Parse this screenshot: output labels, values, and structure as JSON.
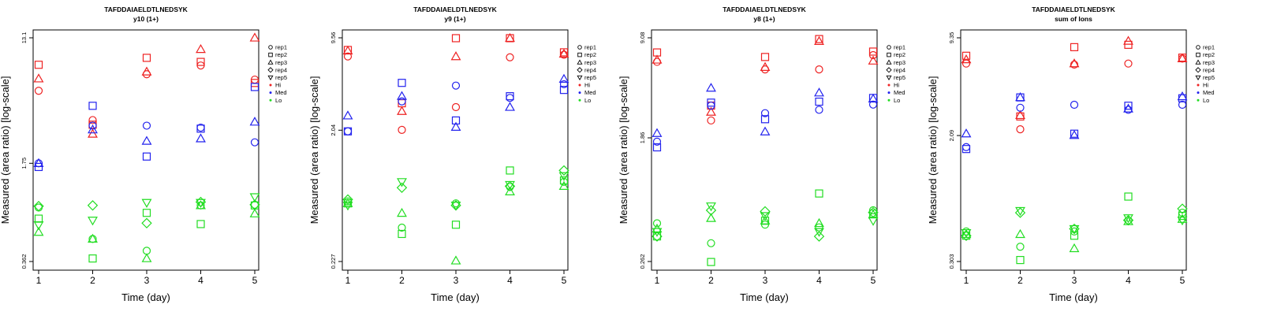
{
  "colors": {
    "Hi": "#ee2222",
    "Med": "#2222ee",
    "Lo": "#22dd22",
    "axis": "#000000"
  },
  "legend_items": [
    {
      "label": "rep1",
      "kind": "rep",
      "index": 0
    },
    {
      "label": "rep2",
      "kind": "rep",
      "index": 1
    },
    {
      "label": "rep3",
      "kind": "rep",
      "index": 2
    },
    {
      "label": "rep4",
      "kind": "rep",
      "index": 3
    },
    {
      "label": "rep5",
      "kind": "rep",
      "index": 4
    },
    {
      "label": "Hi",
      "kind": "group",
      "group": "Hi"
    },
    {
      "label": "Med",
      "kind": "group",
      "group": "Med"
    },
    {
      "label": "Lo",
      "kind": "group",
      "group": "Lo"
    }
  ],
  "chart_data": [
    {
      "type": "scatter",
      "title": "TAFDDAIAELDTLNEDSYK",
      "subtitle": "y10 (1+)",
      "xlabel": "Time (day)",
      "ylabel": "Measured (area ratio) [log-scale]",
      "y_scale": "log",
      "ylim": [
        0.362,
        13.1
      ],
      "yticks": [
        "0.362",
        "1.75",
        "13.1"
      ],
      "xticks": [
        "1",
        "2",
        "3",
        "4",
        "5"
      ],
      "series": [
        {
          "group": "Hi",
          "rep": "rep1",
          "x": [
            1,
            2,
            3,
            4,
            5
          ],
          "y": [
            5.6,
            3.5,
            7.3,
            8.4,
            6.7
          ]
        },
        {
          "group": "Hi",
          "rep": "rep2",
          "x": [
            1,
            2,
            3,
            4,
            5
          ],
          "y": [
            8.5,
            3.25,
            9.5,
            8.9,
            6.35
          ]
        },
        {
          "group": "Hi",
          "rep": "rep3",
          "x": [
            1,
            2,
            3,
            4,
            5
          ],
          "y": [
            6.8,
            2.8,
            7.6,
            10.9,
            13.1
          ]
        },
        {
          "group": "Med",
          "rep": "rep1",
          "x": [
            1,
            2,
            3,
            4,
            5
          ],
          "y": [
            1.75,
            3.2,
            3.2,
            3.1,
            2.45
          ]
        },
        {
          "group": "Med",
          "rep": "rep2",
          "x": [
            1,
            2,
            3,
            4,
            5
          ],
          "y": [
            1.65,
            4.4,
            1.95,
            3.05,
            5.95
          ]
        },
        {
          "group": "Med",
          "rep": "rep3",
          "x": [
            1,
            2,
            3,
            4,
            5
          ],
          "y": [
            1.75,
            3.0,
            2.5,
            2.6,
            3.4
          ]
        },
        {
          "group": "Lo",
          "rep": "rep1",
          "x": [
            1,
            2,
            3,
            4,
            5
          ],
          "y": [
            0.86,
            0.52,
            0.43,
            0.89,
            0.9
          ]
        },
        {
          "group": "Lo",
          "rep": "rep2",
          "x": [
            1,
            2,
            3,
            4,
            5
          ],
          "y": [
            0.72,
            0.38,
            0.79,
            0.66,
            0.89
          ]
        },
        {
          "group": "Lo",
          "rep": "rep3",
          "x": [
            1,
            2,
            3,
            4,
            5
          ],
          "y": [
            0.58,
            0.52,
            0.38,
            0.89,
            0.78
          ]
        },
        {
          "group": "Lo",
          "rep": "rep4",
          "x": [
            1,
            2,
            3,
            4,
            5
          ],
          "y": [
            0.88,
            0.89,
            0.67,
            0.94,
            0.9
          ]
        },
        {
          "group": "Lo",
          "rep": "rep5",
          "x": [
            1,
            2,
            3,
            4,
            5
          ],
          "y": [
            0.65,
            0.7,
            0.93,
            0.93,
            1.02
          ]
        }
      ]
    },
    {
      "type": "scatter",
      "title": "TAFDDAIAELDTLNEDSYK",
      "subtitle": "y9 (1+)",
      "xlabel": "Time (day)",
      "ylabel": "Measured (area ratio) [log-scale]",
      "y_scale": "log",
      "ylim": [
        0.227,
        9.56
      ],
      "yticks": [
        "0.227",
        "2.04",
        "9.56"
      ],
      "xticks": [
        "1",
        "2",
        "3",
        "4",
        "5"
      ],
      "series": [
        {
          "group": "Hi",
          "rep": "rep1",
          "x": [
            1,
            2,
            3,
            4,
            5
          ],
          "y": [
            7.0,
            2.05,
            3.0,
            6.9,
            7.2
          ]
        },
        {
          "group": "Hi",
          "rep": "rep2",
          "x": [
            1,
            2,
            3,
            4,
            5
          ],
          "y": [
            7.8,
            3.2,
            9.5,
            9.5,
            7.5
          ]
        },
        {
          "group": "Hi",
          "rep": "rep3",
          "x": [
            1,
            2,
            3,
            4,
            5
          ],
          "y": [
            7.7,
            2.8,
            7.0,
            9.5,
            7.3
          ]
        },
        {
          "group": "Med",
          "rep": "rep1",
          "x": [
            1,
            2,
            3,
            4,
            5
          ],
          "y": [
            2.0,
            3.3,
            4.3,
            3.5,
            4.4
          ]
        },
        {
          "group": "Med",
          "rep": "rep2",
          "x": [
            1,
            2,
            3,
            4,
            5
          ],
          "y": [
            2.0,
            4.5,
            2.4,
            3.6,
            4.0
          ]
        },
        {
          "group": "Med",
          "rep": "rep3",
          "x": [
            1,
            2,
            3,
            4,
            5
          ],
          "y": [
            2.6,
            3.6,
            2.15,
            3.0,
            4.8
          ]
        },
        {
          "group": "Lo",
          "rep": "rep1",
          "x": [
            1,
            2,
            3,
            4,
            5
          ],
          "y": [
            0.62,
            0.4,
            0.6,
            0.79,
            0.86
          ]
        },
        {
          "group": "Lo",
          "rep": "rep2",
          "x": [
            1,
            2,
            3,
            4,
            5
          ],
          "y": [
            0.6,
            0.36,
            0.42,
            1.04,
            0.88
          ]
        },
        {
          "group": "Lo",
          "rep": "rep3",
          "x": [
            1,
            2,
            3,
            4,
            5
          ],
          "y": [
            0.6,
            0.51,
            0.23,
            0.73,
            0.8
          ]
        },
        {
          "group": "Lo",
          "rep": "rep4",
          "x": [
            1,
            2,
            3,
            4,
            5
          ],
          "y": [
            0.64,
            0.78,
            0.58,
            0.8,
            1.04
          ]
        },
        {
          "group": "Lo",
          "rep": "rep5",
          "x": [
            1,
            2,
            3,
            4,
            5
          ],
          "y": [
            0.58,
            0.86,
            0.58,
            0.82,
            0.95
          ]
        }
      ]
    },
    {
      "type": "scatter",
      "title": "TAFDDAIAELDTLNEDSYK",
      "subtitle": "y8 (1+)",
      "xlabel": "Time (day)",
      "ylabel": "Measured (area ratio) [log-scale]",
      "y_scale": "log",
      "ylim": [
        0.262,
        9.08
      ],
      "yticks": [
        "0.262",
        "1.86",
        "9.08"
      ],
      "xticks": [
        "1",
        "2",
        "3",
        "4",
        "5"
      ],
      "series": [
        {
          "group": "Hi",
          "rep": "rep1",
          "x": [
            1,
            2,
            3,
            4,
            5
          ],
          "y": [
            6.2,
            2.45,
            5.5,
            5.5,
            6.9
          ]
        },
        {
          "group": "Hi",
          "rep": "rep2",
          "x": [
            1,
            2,
            3,
            4,
            5
          ],
          "y": [
            7.2,
            3.1,
            6.7,
            8.9,
            7.3
          ]
        },
        {
          "group": "Hi",
          "rep": "rep3",
          "x": [
            1,
            2,
            3,
            4,
            5
          ],
          "y": [
            6.4,
            2.8,
            5.7,
            8.6,
            6.3
          ]
        },
        {
          "group": "Med",
          "rep": "rep1",
          "x": [
            1,
            2,
            3,
            4,
            5
          ],
          "y": [
            1.75,
            3.1,
            2.75,
            2.9,
            3.15
          ]
        },
        {
          "group": "Med",
          "rep": "rep2",
          "x": [
            1,
            2,
            3,
            4,
            5
          ],
          "y": [
            1.6,
            3.25,
            2.5,
            3.3,
            3.5
          ]
        },
        {
          "group": "Med",
          "rep": "rep3",
          "x": [
            1,
            2,
            3,
            4,
            5
          ],
          "y": [
            2.0,
            4.1,
            2.05,
            3.8,
            3.45
          ]
        },
        {
          "group": "Lo",
          "rep": "rep1",
          "x": [
            1,
            2,
            3,
            4,
            5
          ],
          "y": [
            0.48,
            0.35,
            0.47,
            0.45,
            0.59
          ]
        },
        {
          "group": "Lo",
          "rep": "rep2",
          "x": [
            1,
            2,
            3,
            4,
            5
          ],
          "y": [
            0.39,
            0.26,
            0.5,
            0.77,
            0.56
          ]
        },
        {
          "group": "Lo",
          "rep": "rep3",
          "x": [
            1,
            2,
            3,
            4,
            5
          ],
          "y": [
            0.44,
            0.52,
            0.5,
            0.48,
            0.55
          ]
        },
        {
          "group": "Lo",
          "rep": "rep4",
          "x": [
            1,
            2,
            3,
            4,
            5
          ],
          "y": [
            0.39,
            0.59,
            0.58,
            0.39,
            0.57
          ]
        },
        {
          "group": "Lo",
          "rep": "rep5",
          "x": [
            1,
            2,
            3,
            4,
            5
          ],
          "y": [
            0.42,
            0.63,
            0.54,
            0.42,
            0.5
          ]
        }
      ]
    },
    {
      "type": "scatter",
      "title": "TAFDDAIAELDTLNEDSYK",
      "subtitle": "sum of Ions",
      "xlabel": "Time (day)",
      "ylabel": "Measured (area ratio) [log-scale]",
      "y_scale": "log",
      "ylim": [
        0.303,
        9.35
      ],
      "yticks": [
        "0.303",
        "2.09",
        "9.35"
      ],
      "xticks": [
        "1",
        "2",
        "3",
        "4",
        "5"
      ],
      "series": [
        {
          "group": "Hi",
          "rep": "rep1",
          "x": [
            1,
            2,
            3,
            4,
            5
          ],
          "y": [
            6.3,
            2.3,
            6.2,
            6.3,
            6.8
          ]
        },
        {
          "group": "Hi",
          "rep": "rep2",
          "x": [
            1,
            2,
            3,
            4,
            5
          ],
          "y": [
            7.1,
            2.8,
            8.1,
            8.4,
            6.9
          ]
        },
        {
          "group": "Hi",
          "rep": "rep3",
          "x": [
            1,
            2,
            3,
            4,
            5
          ],
          "y": [
            6.7,
            2.85,
            6.3,
            8.9,
            6.8
          ]
        },
        {
          "group": "Med",
          "rep": "rep1",
          "x": [
            1,
            2,
            3,
            4,
            5
          ],
          "y": [
            1.75,
            3.2,
            3.35,
            3.1,
            3.35
          ]
        },
        {
          "group": "Med",
          "rep": "rep2",
          "x": [
            1,
            2,
            3,
            4,
            5
          ],
          "y": [
            1.7,
            3.75,
            2.15,
            3.3,
            3.7
          ]
        },
        {
          "group": "Med",
          "rep": "rep3",
          "x": [
            1,
            2,
            3,
            4,
            5
          ],
          "y": [
            2.15,
            3.75,
            2.1,
            3.15,
            3.8
          ]
        },
        {
          "group": "Lo",
          "rep": "rep1",
          "x": [
            1,
            2,
            3,
            4,
            5
          ],
          "y": [
            0.48,
            0.38,
            0.48,
            0.57,
            0.64
          ]
        },
        {
          "group": "Lo",
          "rep": "rep2",
          "x": [
            1,
            2,
            3,
            4,
            5
          ],
          "y": [
            0.45,
            0.31,
            0.45,
            0.82,
            0.61
          ]
        },
        {
          "group": "Lo",
          "rep": "rep3",
          "x": [
            1,
            2,
            3,
            4,
            5
          ],
          "y": [
            0.46,
            0.46,
            0.37,
            0.56,
            0.58
          ]
        },
        {
          "group": "Lo",
          "rep": "rep4",
          "x": [
            1,
            2,
            3,
            4,
            5
          ],
          "y": [
            0.45,
            0.64,
            0.5,
            0.57,
            0.68
          ]
        },
        {
          "group": "Lo",
          "rep": "rep5",
          "x": [
            1,
            2,
            3,
            4,
            5
          ],
          "y": [
            0.47,
            0.66,
            0.5,
            0.59,
            0.57
          ]
        }
      ]
    }
  ]
}
